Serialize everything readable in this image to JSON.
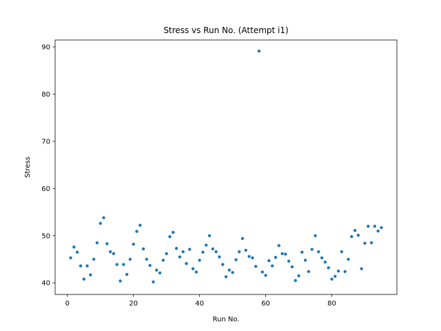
{
  "chart_data": {
    "type": "scatter",
    "title": "Stress vs Run No. (Attempt i1)",
    "xlabel": "Run No.",
    "ylabel": "Stress",
    "xlim": [
      -3.7,
      99.7
    ],
    "ylim": [
      37.55,
      91.45
    ],
    "xticks": [
      0,
      20,
      40,
      60,
      80
    ],
    "yticks": [
      40,
      50,
      60,
      70,
      80,
      90
    ],
    "marker_color": "#1f77b4",
    "grid": false,
    "legend": "none",
    "x": [
      1,
      2,
      3,
      4,
      5,
      6,
      7,
      8,
      9,
      10,
      11,
      12,
      13,
      14,
      15,
      16,
      17,
      18,
      19,
      20,
      21,
      22,
      23,
      24,
      25,
      26,
      27,
      28,
      29,
      30,
      31,
      32,
      33,
      34,
      35,
      36,
      37,
      38,
      39,
      40,
      41,
      42,
      43,
      44,
      45,
      46,
      47,
      48,
      49,
      50,
      51,
      52,
      53,
      54,
      55,
      56,
      57,
      58,
      59,
      60,
      61,
      62,
      63,
      64,
      65,
      66,
      67,
      68,
      69,
      70,
      71,
      72,
      73,
      74,
      75,
      76,
      77,
      78,
      79,
      80,
      81,
      82,
      83,
      84,
      85,
      86,
      87,
      88,
      89,
      90,
      91,
      92,
      93,
      94,
      95
    ],
    "y": [
      45.3,
      47.6,
      46.5,
      43.6,
      40.8,
      43.6,
      41.7,
      45.0,
      48.5,
      52.6,
      53.8,
      48.3,
      46.6,
      46.2,
      43.9,
      40.4,
      43.9,
      41.8,
      45.0,
      48.2,
      50.9,
      52.2,
      47.2,
      45.0,
      43.7,
      40.2,
      42.7,
      42.1,
      44.8,
      46.2,
      49.8,
      50.7,
      47.3,
      45.5,
      46.6,
      44.1,
      47.1,
      43.0,
      42.3,
      44.8,
      46.5,
      48.0,
      50.0,
      47.2,
      46.6,
      45.5,
      43.9,
      41.3,
      42.7,
      42.2,
      44.9,
      46.6,
      49.4,
      46.9,
      45.6,
      45.3,
      43.5,
      89.1,
      42.3,
      41.6,
      44.7,
      43.6,
      45.4,
      47.9,
      46.2,
      46.1,
      44.6,
      43.4,
      40.5,
      41.5,
      46.5,
      44.8,
      42.4,
      47.1,
      50.0,
      46.6,
      45.3,
      44.4,
      43.2,
      40.8,
      41.4,
      42.5,
      46.6,
      42.4,
      45.0,
      49.8,
      51.1,
      50.1,
      43.0,
      48.4,
      52.0,
      48.5,
      52.0,
      51.0,
      51.7
    ]
  }
}
